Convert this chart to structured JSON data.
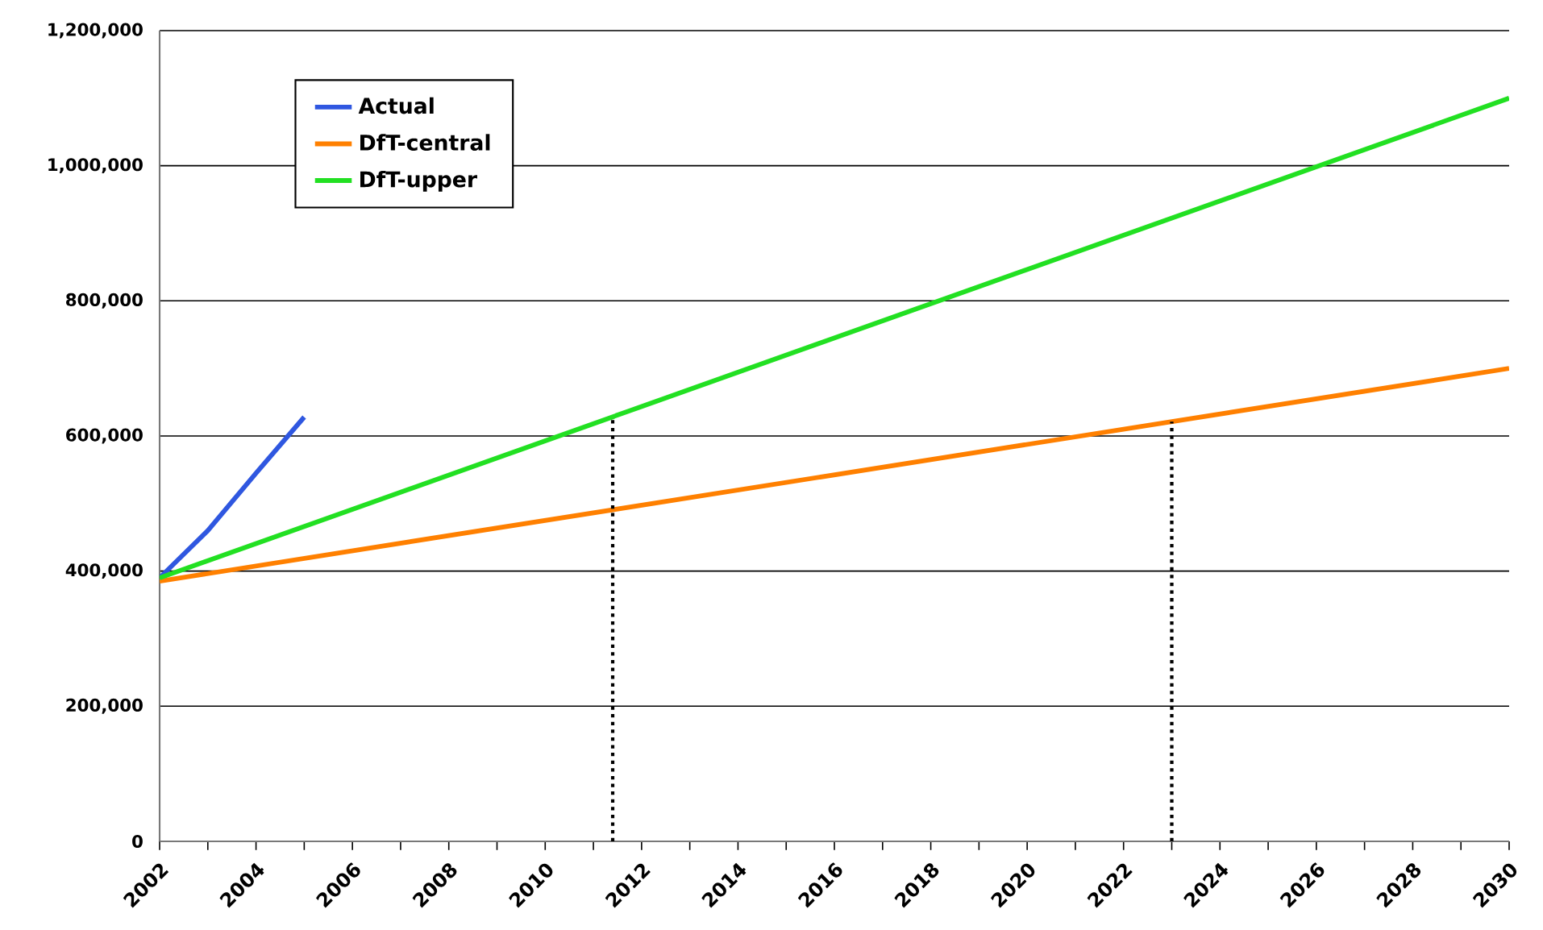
{
  "chart_data": {
    "type": "line",
    "series": [
      {
        "name": "Actual",
        "color": "#2f57e0",
        "x": [
          2002,
          2003,
          2004,
          2005
        ],
        "values": [
          390000,
          460000,
          545000,
          628000
        ]
      },
      {
        "name": "DfT-central",
        "color": "#ff8000",
        "x": [
          2002,
          2030
        ],
        "values": [
          385000,
          700000
        ]
      },
      {
        "name": "DfT-upper",
        "color": "#22e022",
        "x": [
          2002,
          2030
        ],
        "values": [
          390000,
          1100000
        ]
      },
      {
        "color": "#000000",
        "line_style": "dotted",
        "x": [
          2011.4,
          2011.4
        ],
        "values": [
          0,
          628000
        ]
      },
      {
        "color": "#000000",
        "line_style": "dotted",
        "x": [
          2023,
          2023
        ],
        "values": [
          0,
          621000
        ]
      }
    ],
    "xlim": [
      2002,
      2030
    ],
    "xticks": [
      2002,
      {
        "value": 2003,
        "label": null
      },
      2004,
      {
        "value": 2005,
        "label": null
      },
      2006,
      {
        "value": 2007,
        "label": null
      },
      2008,
      {
        "value": 2009,
        "label": null
      },
      2010,
      {
        "value": 2011,
        "label": null
      },
      2012,
      {
        "value": 2013,
        "label": null
      },
      2014,
      {
        "value": 2015,
        "label": null
      },
      2016,
      {
        "value": 2017,
        "label": null
      },
      2018,
      {
        "value": 2019,
        "label": null
      },
      2020,
      {
        "value": 2021,
        "label": null
      },
      2022,
      {
        "value": 2023,
        "label": null
      },
      2024,
      {
        "value": 2025,
        "label": null
      },
      2026,
      {
        "value": 2027,
        "label": null
      },
      2028,
      {
        "value": 2029,
        "label": null
      },
      2030
    ],
    "ylim": [
      0,
      1200000
    ],
    "yticks": [
      0,
      {
        "value": 200000,
        "label": "200,000"
      },
      {
        "value": 400000,
        "label": "400,000"
      },
      {
        "value": 600000,
        "label": "600,000"
      },
      {
        "value": 800000,
        "label": "800,000"
      },
      {
        "value": 1000000,
        "label": "1,000,000"
      },
      {
        "value": 1200000,
        "label": "1,200,000"
      }
    ],
    "grid": "y",
    "legend": "top left",
    "marker": "none",
    "line_style": "solid"
  }
}
